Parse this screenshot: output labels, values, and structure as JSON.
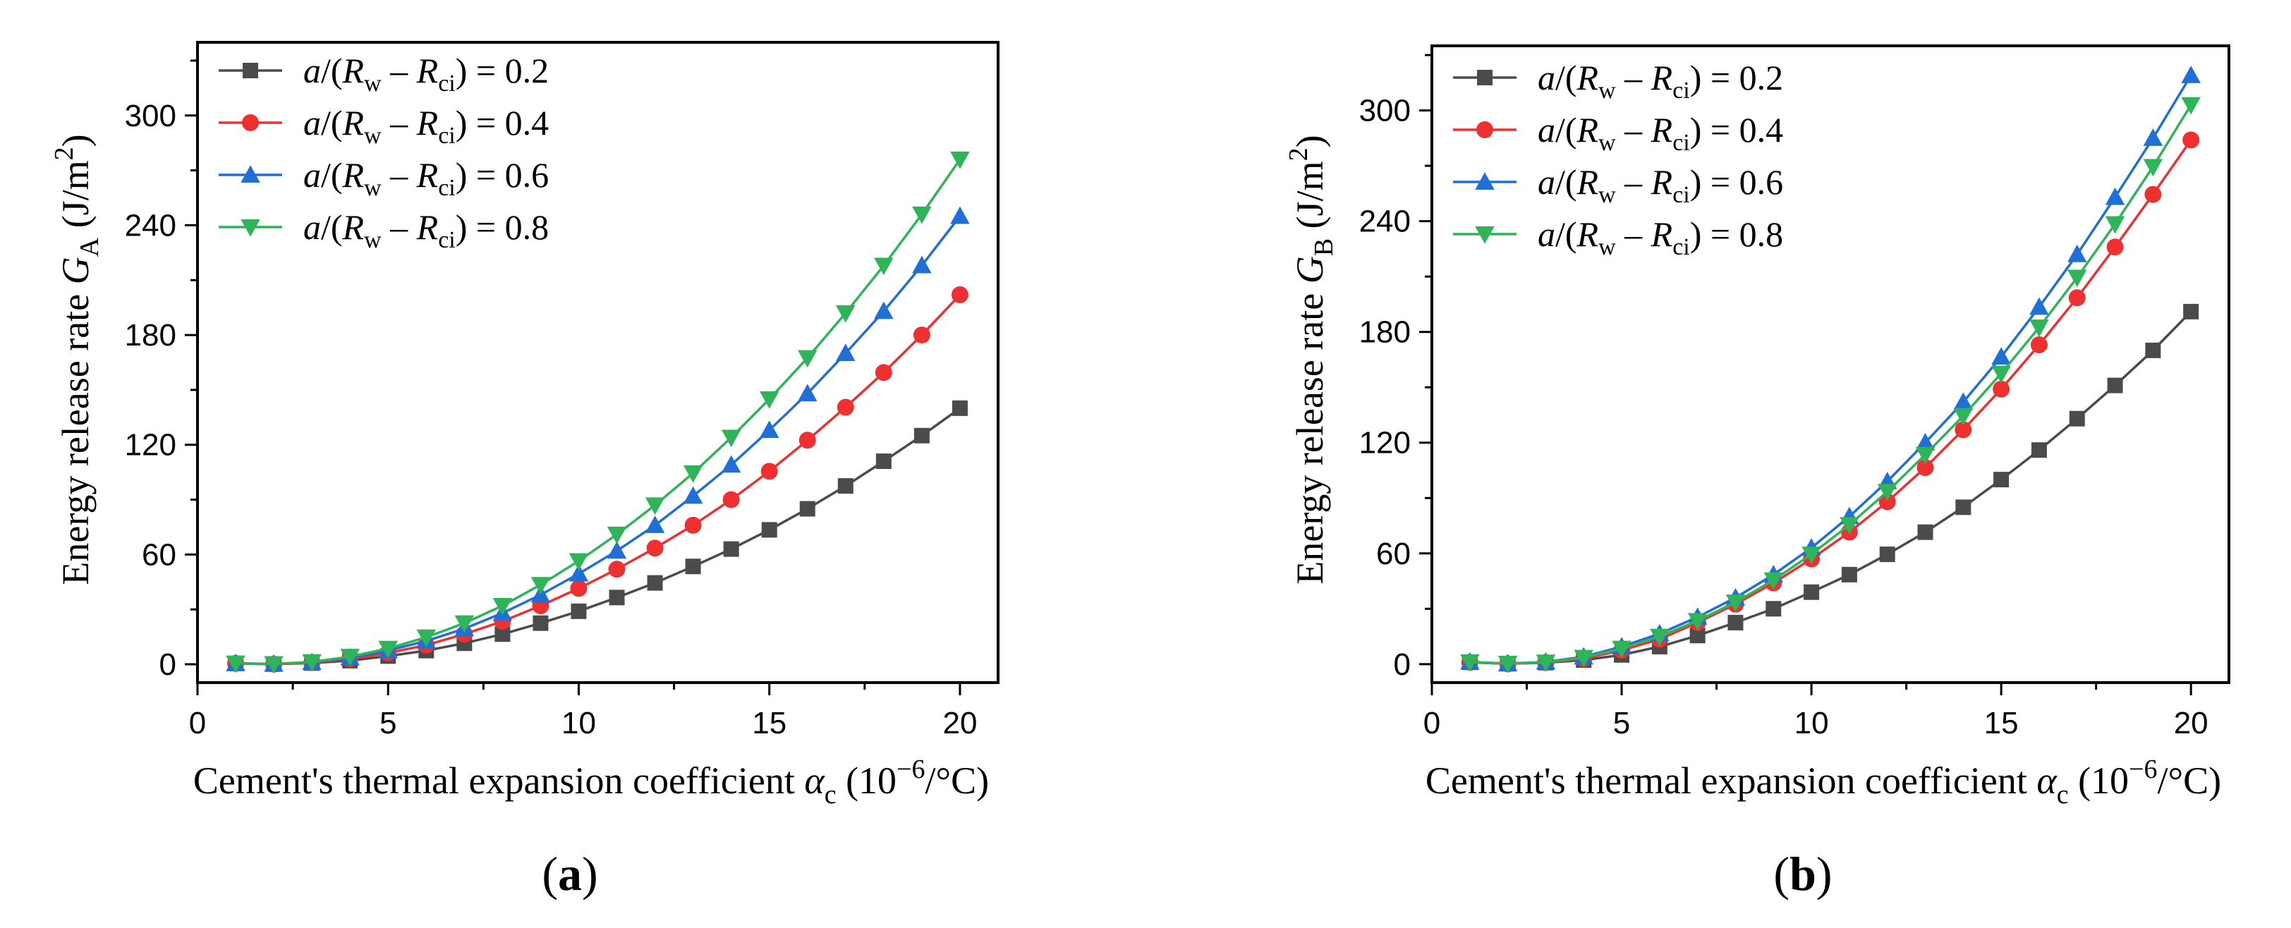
{
  "figure": {
    "colors": {
      "s02": "#4b4b4b",
      "s04": "#ee3030",
      "s06": "#1f6fd6",
      "s08": "#2fb45a",
      "axis": "#000000"
    },
    "panels": [
      {
        "caption_letter": "a",
        "caption_open": "(",
        "caption_close": ")"
      },
      {
        "caption_letter": "b",
        "caption_open": "(",
        "caption_close": ")"
      }
    ]
  },
  "chart_data": [
    {
      "type": "line",
      "title": "",
      "xlabel": "Cement's thermal expansion coefficient αc (10−6/°C)",
      "xlabel_parts": {
        "main": "Cement's thermal expansion coefficient ",
        "sym": "α",
        "sub": "c",
        "open": " (10",
        "sup": "−6",
        "close": "/°C)"
      },
      "ylabel": "Energy release rate GA (J/m2)",
      "ylabel_parts": {
        "main": "Energy release rate ",
        "sym": "G",
        "sub": "A",
        "unit": " (J/m",
        "sup": "2",
        "close": ")"
      },
      "xlim": [
        0,
        21
      ],
      "ylim": [
        -10,
        340
      ],
      "xticks": [
        0,
        5,
        10,
        15,
        20
      ],
      "yticks": [
        0,
        60,
        120,
        180,
        240,
        300
      ],
      "legend_position": "top-left",
      "x": [
        1,
        2,
        3,
        4,
        5,
        6,
        7,
        8,
        9,
        10,
        11,
        12,
        13,
        14,
        15,
        16,
        17,
        18,
        19,
        20
      ],
      "series": [
        {
          "name": "a/(Rw − Rci) = 0.2",
          "label": {
            "pre": "a",
            "mid": "/(",
            "r1": "R",
            "s1": "w",
            "minus": " – ",
            "r2": "R",
            "s2": "ci",
            "post": ") = 0.2"
          },
          "marker": "square",
          "color_key": "s02",
          "values": [
            0.5,
            0.1,
            0.7,
            2.0,
            4.5,
            7.5,
            11.5,
            16.5,
            22.5,
            29,
            36.5,
            44.5,
            53.5,
            63,
            73.5,
            85,
            97.5,
            111,
            125,
            140
          ]
        },
        {
          "name": "a/(Rw − Rci) = 0.4",
          "label": {
            "pre": "a",
            "mid": "/(",
            "r1": "R",
            "s1": "w",
            "minus": " – ",
            "r2": "R",
            "s2": "ci",
            "post": ") = 0.4"
          },
          "marker": "circle",
          "color_key": "s04",
          "values": [
            0.5,
            0.1,
            0.9,
            3.0,
            6.2,
            10.5,
            16.5,
            23.5,
            32,
            41.5,
            52,
            63.5,
            76,
            90,
            105.5,
            122.5,
            140.5,
            159.5,
            180,
            202
          ]
        },
        {
          "name": "a/(Rw − Rci) = 0.6",
          "label": {
            "pre": "a",
            "mid": "/(",
            "r1": "R",
            "s1": "w",
            "minus": " – ",
            "r2": "R",
            "s2": "ci",
            "post": ") = 0.6"
          },
          "marker": "triangle-up",
          "color_key": "s06",
          "values": [
            0.5,
            0.2,
            1.1,
            3.6,
            7.5,
            12.8,
            19.5,
            28,
            38,
            49.5,
            62,
            76,
            92,
            109,
            128,
            148,
            170,
            193,
            218,
            245
          ]
        },
        {
          "name": "a/(Rw − Rci) = 0.8",
          "label": {
            "pre": "a",
            "mid": "/(",
            "r1": "R",
            "s1": "w",
            "minus": " – ",
            "r2": "R",
            "s2": "ci",
            "post": ") = 0.8"
          },
          "marker": "triangle-down",
          "color_key": "s08",
          "values": [
            0.5,
            0.2,
            1.3,
            4.2,
            8.6,
            14.8,
            22.5,
            32,
            43.5,
            56.5,
            71,
            87,
            104.5,
            124,
            145,
            167.5,
            192,
            218,
            246,
            276
          ]
        }
      ]
    },
    {
      "type": "line",
      "title": "",
      "xlabel": "Cement's thermal expansion coefficient αc (10−6/°C)",
      "xlabel_parts": {
        "main": "Cement's thermal expansion coefficient ",
        "sym": "α",
        "sub": "c",
        "open": " (10",
        "sup": "−6",
        "close": "/°C)"
      },
      "ylabel": "Energy release rate GB (J/m2)",
      "ylabel_parts": {
        "main": "Energy release rate ",
        "sym": "G",
        "sub": "B",
        "unit": " (J/m",
        "sup": "2",
        "close": ")"
      },
      "xlim": [
        0,
        21
      ],
      "ylim": [
        -10,
        335
      ],
      "xticks": [
        0,
        5,
        10,
        15,
        20
      ],
      "yticks": [
        0,
        60,
        120,
        180,
        240,
        300
      ],
      "legend_position": "top-left",
      "x": [
        1,
        2,
        3,
        4,
        5,
        6,
        7,
        8,
        9,
        10,
        11,
        12,
        13,
        14,
        15,
        16,
        17,
        18,
        19,
        20
      ],
      "series": [
        {
          "name": "a/(Rw − Rci) = 0.2",
          "label": {
            "pre": "a",
            "mid": "/(",
            "r1": "R",
            "s1": "w",
            "minus": " – ",
            "r2": "R",
            "s2": "ci",
            "post": ") = 0.2"
          },
          "marker": "square",
          "color_key": "s02",
          "values": [
            1.0,
            0.2,
            0.8,
            2.2,
            5.0,
            9.5,
            15.5,
            22.5,
            30,
            39,
            48.5,
            59.5,
            71.5,
            85,
            100,
            116,
            133,
            151,
            170,
            191
          ]
        },
        {
          "name": "a/(Rw − Rci) = 0.4",
          "label": {
            "pre": "a",
            "mid": "/(",
            "r1": "R",
            "s1": "w",
            "minus": " – ",
            "r2": "R",
            "s2": "ci",
            "post": ") = 0.4"
          },
          "marker": "circle",
          "color_key": "s04",
          "values": [
            1.0,
            0.2,
            0.9,
            3.0,
            7.5,
            13.5,
            22.5,
            32.5,
            44,
            57,
            71.5,
            88,
            106.5,
            127,
            149,
            173,
            198.5,
            226,
            254.5,
            284
          ]
        },
        {
          "name": "a/(Rw − Rci) = 0.6",
          "label": {
            "pre": "a",
            "mid": "/(",
            "r1": "R",
            "s1": "w",
            "minus": " – ",
            "r2": "R",
            "s2": "ci",
            "post": ") = 0.6"
          },
          "marker": "triangle-up",
          "color_key": "s06",
          "values": [
            1.2,
            0.3,
            1.2,
            4.0,
            9.5,
            16.5,
            25.5,
            36,
            48.5,
            63,
            80,
            99,
            120,
            142,
            166.5,
            193.5,
            222,
            253,
            285,
            319
          ]
        },
        {
          "name": "a/(Rw − Rci) = 0.8",
          "label": {
            "pre": "a",
            "mid": "/(",
            "r1": "R",
            "s1": "w",
            "minus": " – ",
            "r2": "R",
            "s2": "ci",
            "post": ") = 0.8"
          },
          "marker": "triangle-down",
          "color_key": "s08",
          "values": [
            1.1,
            0.3,
            1.0,
            3.5,
            8.5,
            15.0,
            23.5,
            33.5,
            45.5,
            59.5,
            75.5,
            93.5,
            113.5,
            134.5,
            157.5,
            182.5,
            209.5,
            238.5,
            269.5,
            303
          ]
        }
      ]
    }
  ]
}
